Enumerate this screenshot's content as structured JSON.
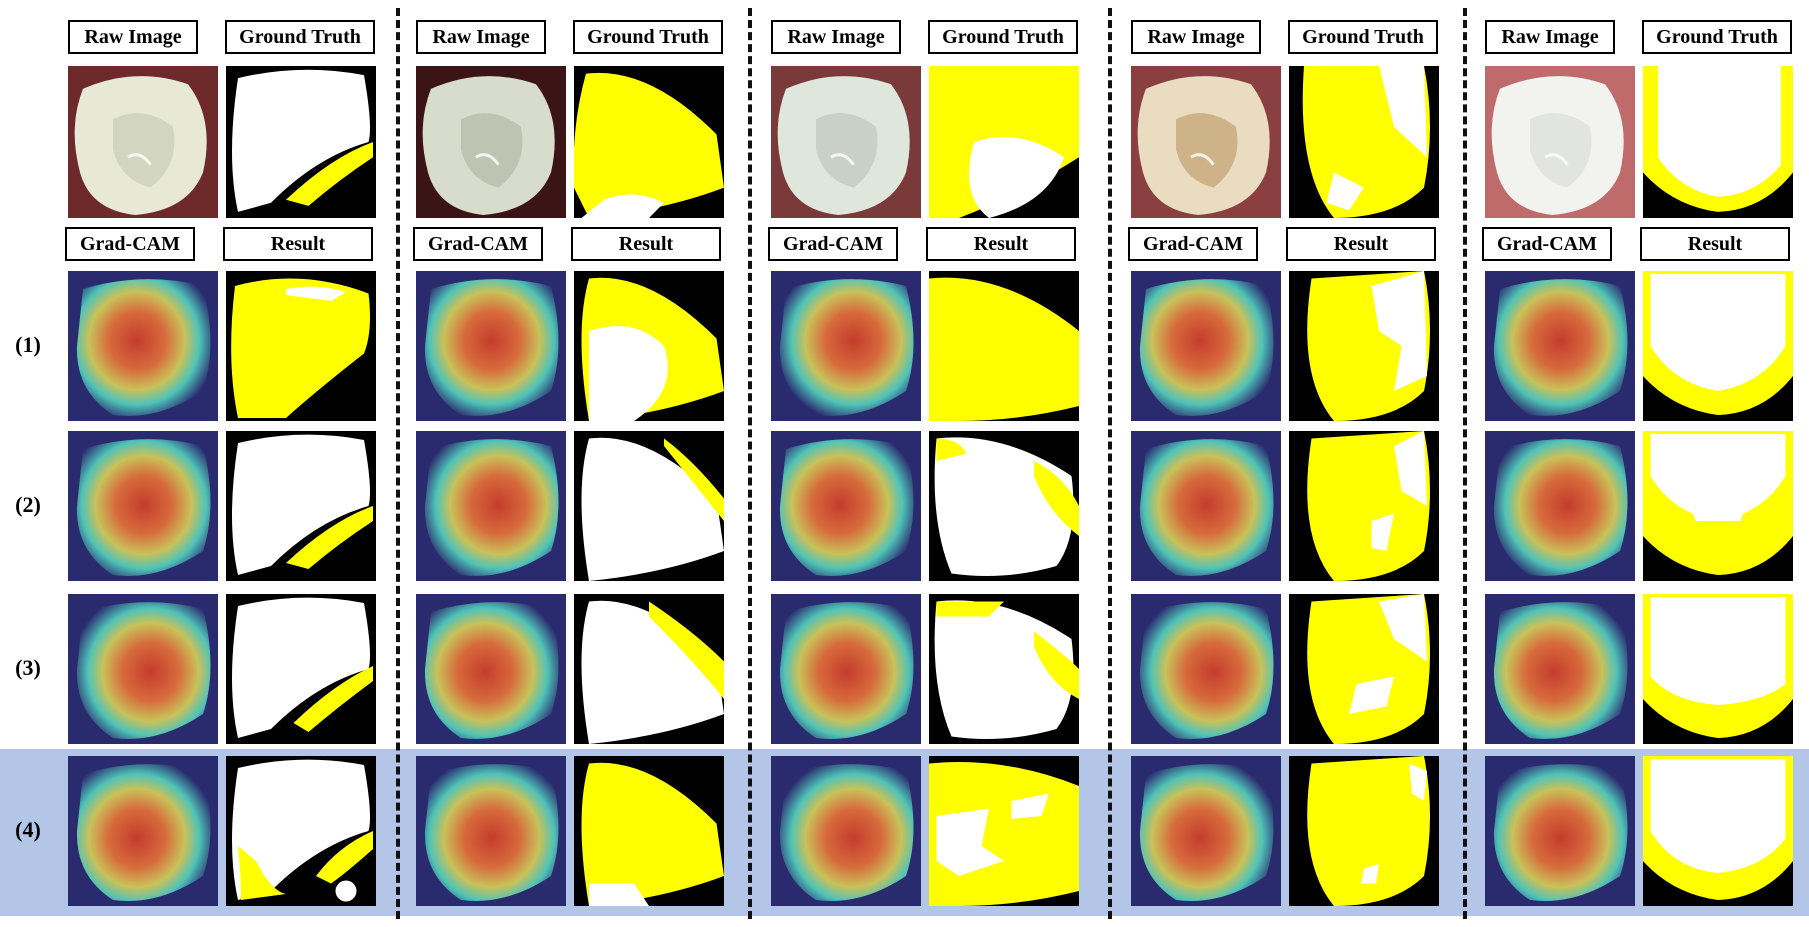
{
  "headers": {
    "raw": "Raw Image",
    "gt": "Ground Truth",
    "cam": "Grad-CAM",
    "result": "Result"
  },
  "row_labels": [
    "(1)",
    "(2)",
    "(3)",
    "(4)"
  ],
  "highlighted_row": "(4)",
  "panel_count": 5,
  "colors": {
    "mask_background": "#000000",
    "mask_white_region": "#ffffff",
    "mask_yellow_region": "#ffff00",
    "cam_background": "#2a2a6e",
    "highlight": "#b4c6e7"
  }
}
